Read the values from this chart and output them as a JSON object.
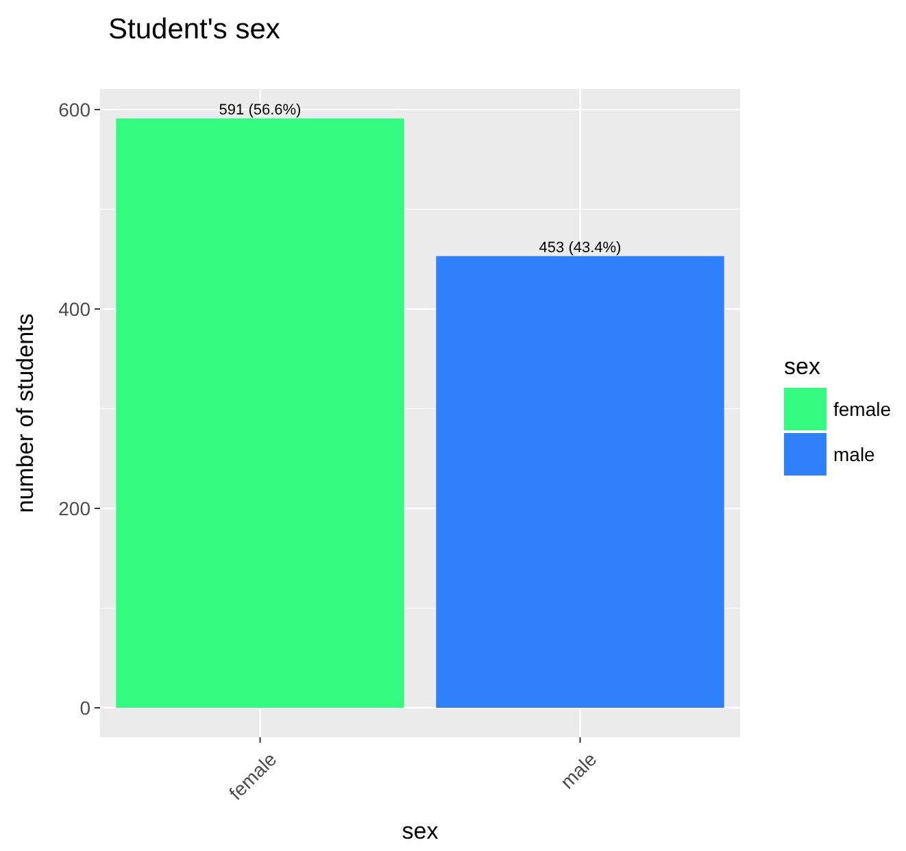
{
  "chart_data": {
    "type": "bar",
    "title": "Student's sex",
    "xlabel": "sex",
    "ylabel": "number of students",
    "legend_title": "sex",
    "categories": [
      "female",
      "male"
    ],
    "series": [
      {
        "name": "female",
        "color": "#33fb7f",
        "values": [
          591,
          null
        ],
        "value_labels": [
          "591 (56.6%)",
          null
        ]
      },
      {
        "name": "male",
        "color": "#2f80fb",
        "values": [
          null,
          453
        ],
        "value_labels": [
          null,
          "453 (43.4%)"
        ]
      }
    ],
    "ylim": [
      -29.55,
      620.55
    ],
    "yticks": [
      0,
      200,
      400,
      600
    ],
    "grid": true,
    "legend": "right"
  }
}
